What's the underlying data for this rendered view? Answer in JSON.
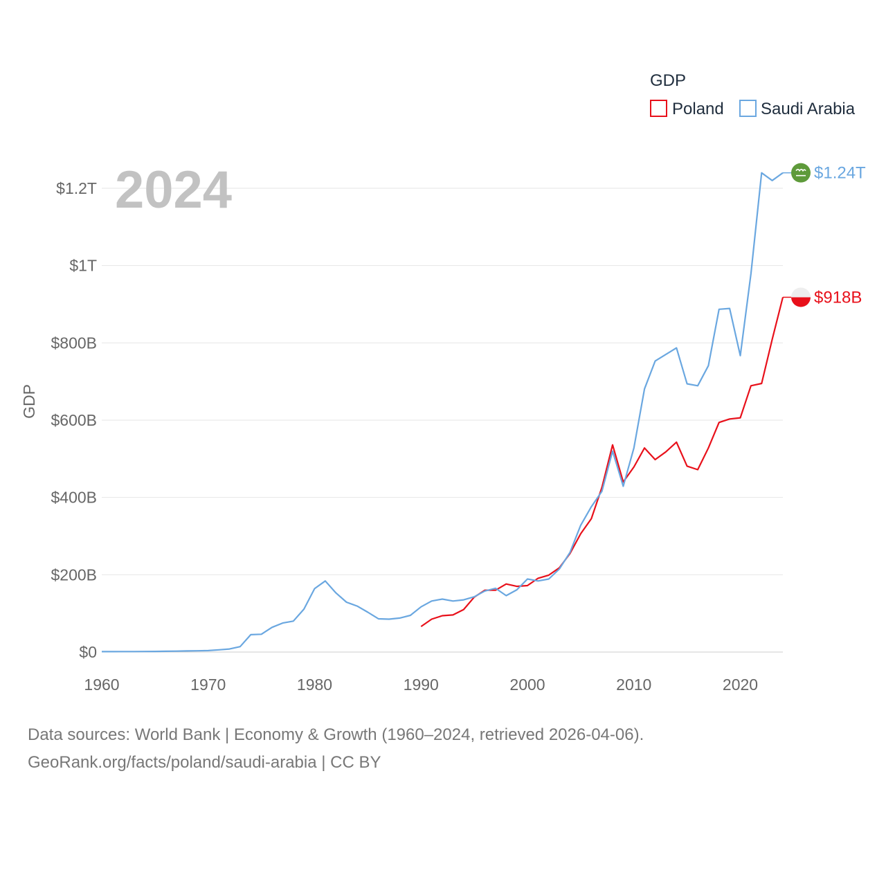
{
  "chart_data": {
    "type": "line",
    "title": "",
    "xlabel": "",
    "ylabel": "GDP",
    "xlim": [
      1960,
      2024
    ],
    "ylim": [
      0,
      1300000000000
    ],
    "x_ticks": [
      1960,
      1970,
      1980,
      1990,
      2000,
      2010,
      2020
    ],
    "x_tick_labels": [
      "1960",
      "1970",
      "1980",
      "1990",
      "2000",
      "2010",
      "2020"
    ],
    "y_ticks": [
      0,
      200000000000,
      400000000000,
      600000000000,
      800000000000,
      1000000000000,
      1200000000000
    ],
    "y_tick_labels": [
      "$0",
      "$200B",
      "$400B",
      "$600B",
      "$800B",
      "$1T",
      "$1.2T"
    ],
    "grid": true,
    "legend": {
      "title": "GDP",
      "position": "top-right",
      "entries": [
        "Poland",
        "Saudi Arabia"
      ]
    },
    "year_label": "2024",
    "series": [
      {
        "name": "Poland",
        "color": "#e8101a",
        "end_label": "$918B",
        "flag_icon": "poland-flag-icon",
        "x": [
          1990,
          1991,
          1992,
          1993,
          1994,
          1995,
          1996,
          1997,
          1998,
          1999,
          2000,
          2001,
          2002,
          2003,
          2004,
          2005,
          2006,
          2007,
          2008,
          2009,
          2010,
          2011,
          2012,
          2013,
          2014,
          2015,
          2016,
          2017,
          2018,
          2019,
          2020,
          2021,
          2022,
          2023,
          2024
        ],
        "values": [
          66000000000,
          85000000000,
          94000000000,
          96000000000,
          110000000000,
          142000000000,
          160000000000,
          160000000000,
          176000000000,
          170000000000,
          172000000000,
          191000000000,
          199000000000,
          218000000000,
          255000000000,
          306000000000,
          345000000000,
          426000000000,
          536000000000,
          440000000000,
          479000000000,
          528000000000,
          498000000000,
          518000000000,
          543000000000,
          481000000000,
          472000000000,
          528000000000,
          594000000000,
          603000000000,
          606000000000,
          689000000000,
          695000000000,
          809000000000,
          918000000000
        ]
      },
      {
        "name": "Saudi Arabia",
        "color": "#6aa7e0",
        "end_label": "$1.24T",
        "flag_icon": "saudi-arabia-flag-icon",
        "x": [
          1960,
          1961,
          1962,
          1963,
          1964,
          1965,
          1966,
          1967,
          1968,
          1969,
          1970,
          1971,
          1972,
          1973,
          1974,
          1975,
          1976,
          1977,
          1978,
          1979,
          1980,
          1981,
          1982,
          1983,
          1984,
          1985,
          1986,
          1987,
          1988,
          1989,
          1990,
          1991,
          1992,
          1993,
          1994,
          1995,
          1996,
          1997,
          1998,
          1999,
          2000,
          2001,
          2002,
          2003,
          2004,
          2005,
          2006,
          2007,
          2008,
          2009,
          2010,
          2011,
          2012,
          2013,
          2014,
          2015,
          2016,
          2017,
          2018,
          2019,
          2020,
          2021,
          2022,
          2023,
          2024
        ],
        "values": [
          1000000000,
          1100000000,
          1200000000,
          1300000000,
          1400000000,
          1700000000,
          2000000000,
          2300000000,
          2800000000,
          3300000000,
          3700000000,
          5700000000,
          7800000000,
          14000000000,
          45000000000,
          46000000000,
          64000000000,
          75000000000,
          80000000000,
          111000000000,
          164000000000,
          184000000000,
          153000000000,
          129000000000,
          119000000000,
          103000000000,
          86000000000,
          85000000000,
          88000000000,
          95000000000,
          117000000000,
          132000000000,
          137000000000,
          132000000000,
          135000000000,
          143000000000,
          158000000000,
          165000000000,
          146000000000,
          161000000000,
          189000000000,
          184000000000,
          189000000000,
          215000000000,
          258000000000,
          328000000000,
          376000000000,
          416000000000,
          520000000000,
          429000000000,
          528000000000,
          681000000000,
          753000000000,
          770000000000,
          787000000000,
          694000000000,
          689000000000,
          741000000000,
          887000000000,
          889000000000,
          767000000000,
          979000000000,
          1240000000000,
          1220000000000,
          1240000000000
        ]
      }
    ]
  },
  "footer": {
    "line1": "Data sources: World Bank | Economy & Growth (1960–2024, retrieved 2026-04-06).",
    "line2": "GeoRank.org/facts/poland/saudi-arabia | CC BY"
  }
}
